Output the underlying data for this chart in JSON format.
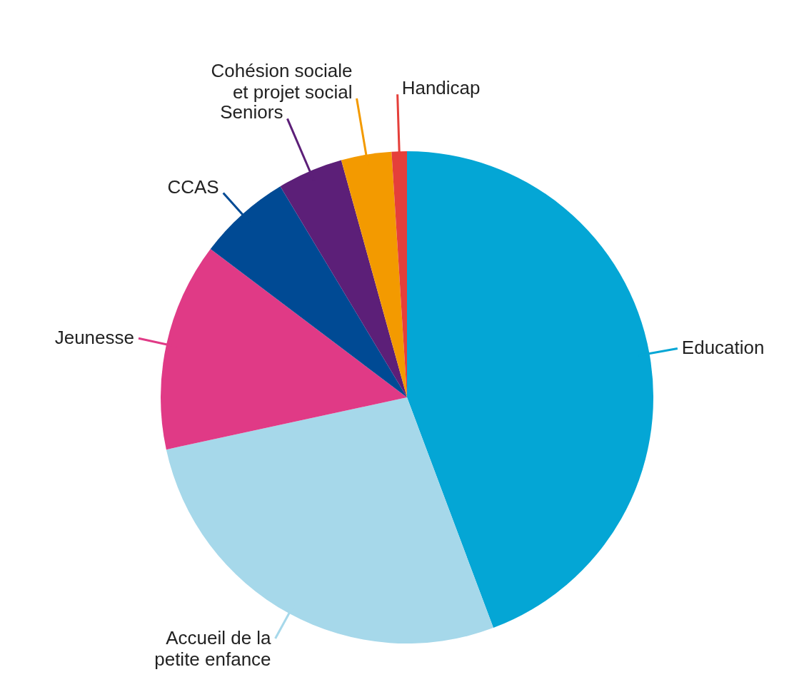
{
  "chart_data": {
    "type": "pie",
    "categories": [
      "Education",
      "Accueil de la petite enfance",
      "Jeunesse",
      "CCAS",
      "Seniors",
      "Cohésion sociale et projet social",
      "Handicap"
    ],
    "values": [
      44.3,
      27.3,
      13.7,
      6.1,
      4.3,
      3.3,
      1.0
    ],
    "colors": [
      "#04a6d5",
      "#a6d8ea",
      "#e03a86",
      "#004a94",
      "#5c1f78",
      "#f39a00",
      "#e53f3a"
    ]
  }
}
